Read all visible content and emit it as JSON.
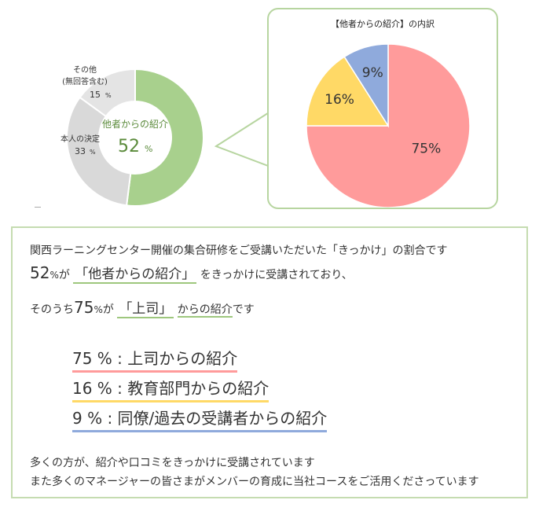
{
  "chart_data": [
    {
      "type": "pie",
      "variant": "donut",
      "slices": [
        {
          "label": "他者からの紹介",
          "value": 52,
          "pct": "%",
          "color": "#a8d08d"
        },
        {
          "label": "本人の決定",
          "value": 33,
          "pct": "%",
          "color": "#d9d9d9"
        },
        {
          "label_line1": "その他",
          "label_line2": "(無回答含む)",
          "value": 15,
          "pct": "%",
          "color": "#e4e4e4"
        }
      ]
    },
    {
      "type": "pie",
      "title": "【他者からの紹介】の内訳",
      "slices": [
        {
          "value": 75,
          "label": "75%",
          "color": "#ff9b9b"
        },
        {
          "value": 16,
          "label": "16%",
          "color": "#ffd966"
        },
        {
          "value": 9,
          "label": "9%",
          "color": "#8faadc"
        }
      ]
    }
  ],
  "summary": {
    "line1": "関西ラーニングセンター開催の集合研修をご受講いただいた「きっかけ」の割合です",
    "line2": {
      "num": "52",
      "pct": "%",
      "a": "が",
      "hl": "「他者からの紹介」",
      "b": "をきっかけに受講されており、"
    },
    "line3": {
      "a": "そのうち",
      "num": "75",
      "pct": "%",
      "b": "が",
      "hl": "「上司」",
      "c": "からの紹介",
      "d": "です"
    },
    "breakdown": [
      {
        "text": "75 % : 上司からの紹介",
        "color": "#ff9b9b"
      },
      {
        "text": "16 % : 教育部門からの紹介",
        "color": "#ffd966"
      },
      {
        "text": " 9 % : 同僚/過去の受講者からの紹介",
        "color": "#8faadc"
      }
    ],
    "footer1": "多くの方が、紹介や口コミをきっかけに受講されています",
    "footer2": "また多くのマネージャーの皆さまがメンバーの育成に当社コースをご活用くださっています"
  }
}
